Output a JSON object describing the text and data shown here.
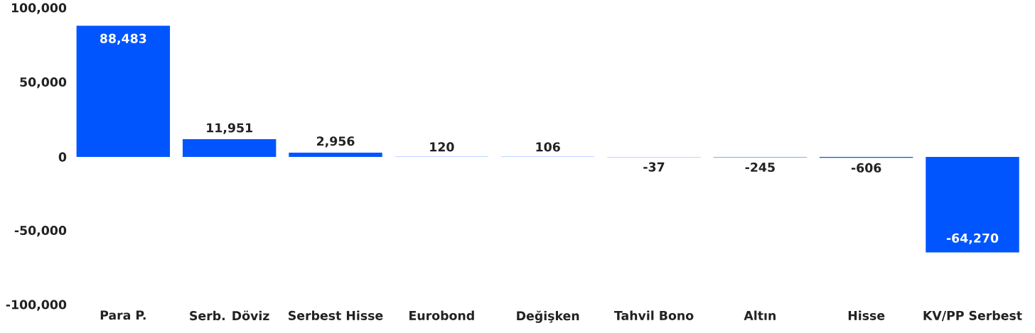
{
  "chart_data": {
    "type": "bar",
    "categories": [
      "Para P.",
      "Serb. Döviz",
      "Serbest Hisse",
      "Eurobond",
      "Değişken",
      "Tahvil Bono",
      "Altın",
      "Hisse",
      "KV/PP Serbest"
    ],
    "values": [
      88483,
      11951,
      2956,
      120,
      106,
      -37,
      -245,
      -606,
      -64270
    ],
    "value_labels": [
      "88,483",
      "11,951",
      "2,956",
      "120",
      "106",
      "-37",
      "-245",
      "-606",
      "-64,270"
    ],
    "color": "#0055ff",
    "ylim": [
      -100000,
      100000
    ],
    "yticks": [
      {
        "value": -100000,
        "label": "-100,000"
      },
      {
        "value": -50000,
        "label": "-50,000"
      },
      {
        "value": 0,
        "label": "0"
      },
      {
        "value": 50000,
        "label": "50,000"
      },
      {
        "value": 100000,
        "label": "100,000"
      }
    ],
    "grid": false
  }
}
